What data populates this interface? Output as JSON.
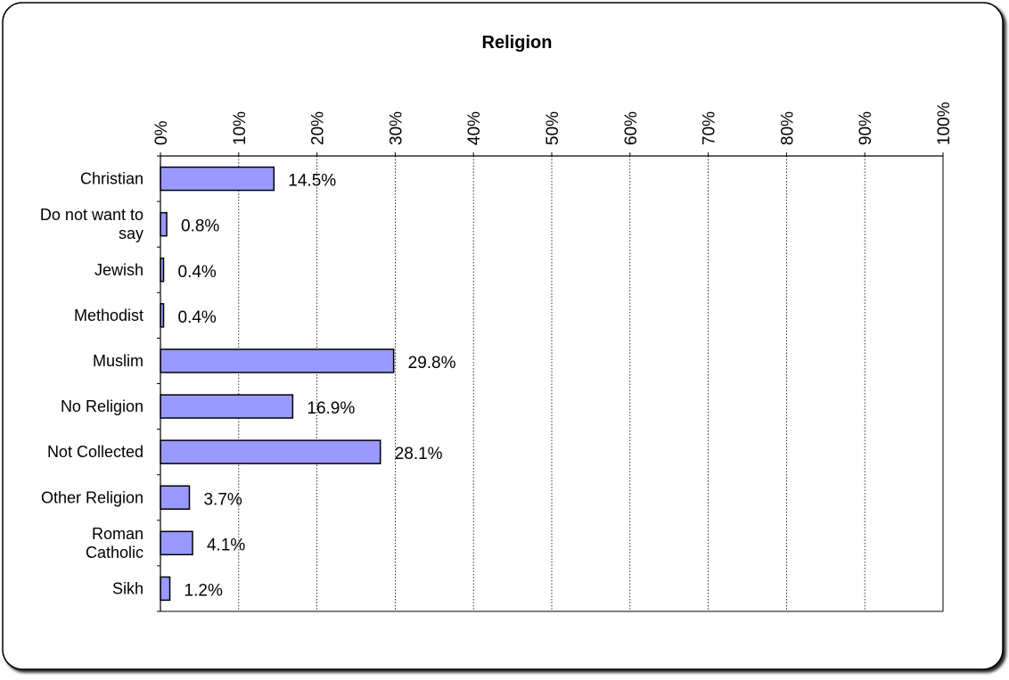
{
  "chart_data": {
    "type": "bar",
    "orientation": "horizontal",
    "title": "Religion",
    "categories": [
      [
        "Christian"
      ],
      [
        "Do not want to",
        "say"
      ],
      [
        "Jewish"
      ],
      [
        "Methodist"
      ],
      [
        "Muslim"
      ],
      [
        "No Religion"
      ],
      [
        "Not Collected"
      ],
      [
        "Other Religion"
      ],
      [
        "Roman",
        "Catholic"
      ],
      [
        "Sikh"
      ]
    ],
    "values": [
      14.5,
      0.8,
      0.4,
      0.4,
      29.8,
      16.9,
      28.1,
      3.7,
      4.1,
      1.2
    ],
    "value_labels": [
      "14.5%",
      "0.8%",
      "0.4%",
      "0.4%",
      "29.8%",
      "16.9%",
      "28.1%",
      "3.7%",
      "4.1%",
      "1.2%"
    ],
    "xlim": [
      0,
      100
    ],
    "x_ticks": [
      0,
      10,
      20,
      30,
      40,
      50,
      60,
      70,
      80,
      90,
      100
    ],
    "x_tick_labels": [
      "0%",
      "10%",
      "20%",
      "30%",
      "40%",
      "50%",
      "60%",
      "70%",
      "80%",
      "90%",
      "100%"
    ],
    "x_axis_position": "top",
    "x_tick_label_rotation": "vertical",
    "grid": "vertical dotted",
    "bar_color": "#9999ff",
    "bar_outline_color": "#000000",
    "gridline_color": "#000000"
  }
}
